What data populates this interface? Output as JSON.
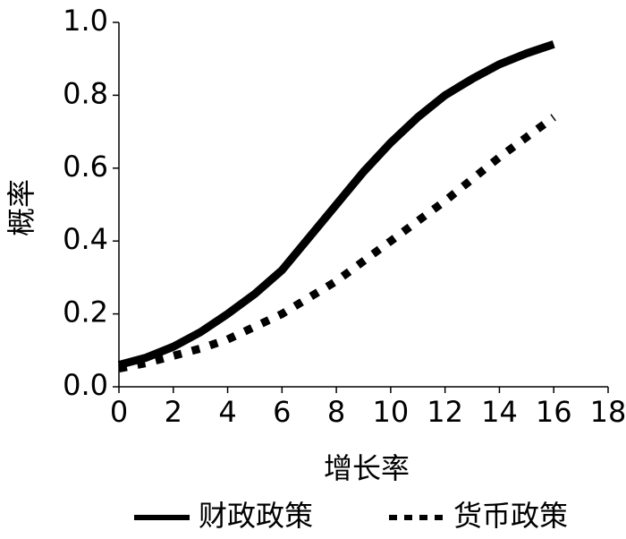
{
  "chart_data": {
    "type": "line",
    "x": [
      0,
      1,
      2,
      3,
      4,
      5,
      6,
      7,
      8,
      9,
      10,
      11,
      12,
      13,
      14,
      15,
      16
    ],
    "series": [
      {
        "name": "财政政策",
        "color": "#000000",
        "dash": "solid",
        "values": [
          0.06,
          0.08,
          0.11,
          0.15,
          0.2,
          0.255,
          0.32,
          0.41,
          0.5,
          0.59,
          0.67,
          0.74,
          0.8,
          0.845,
          0.885,
          0.915,
          0.94
        ]
      },
      {
        "name": "货币政策",
        "color": "#000000",
        "dash": "dotted",
        "values": [
          0.05,
          0.065,
          0.085,
          0.105,
          0.13,
          0.165,
          0.2,
          0.245,
          0.29,
          0.345,
          0.4,
          0.455,
          0.51,
          0.57,
          0.63,
          0.685,
          0.74
        ]
      }
    ],
    "xlabel": "增长率",
    "ylabel": "概率",
    "xlim": [
      0,
      18
    ],
    "xticks": [
      0,
      2,
      4,
      6,
      8,
      10,
      12,
      14,
      16,
      18
    ],
    "ylim": [
      0,
      1
    ],
    "yticks": [
      {
        "value": 0,
        "label": "0.0"
      },
      0.2,
      0.4,
      0.6,
      0.8,
      {
        "value": 1,
        "label": "1.0"
      }
    ],
    "grid": false,
    "legend": "bottom"
  }
}
